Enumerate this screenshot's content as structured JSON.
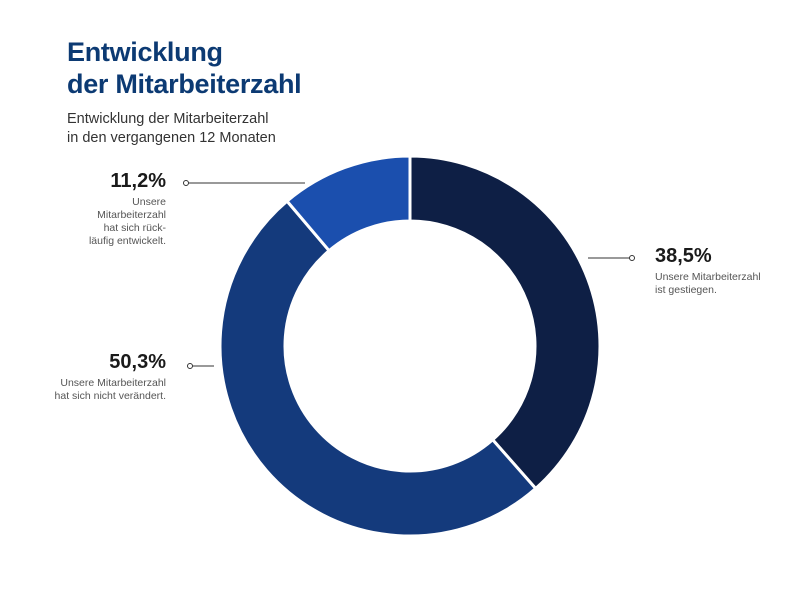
{
  "header": {
    "title_line1": "Entwicklung",
    "title_line2": "der Mitarbeiterzahl",
    "subtitle_line1": "Entwicklung der Mitarbeiterzahl",
    "subtitle_line2": "in den vergangenen 12 Monaten"
  },
  "chart_data": {
    "type": "pie",
    "variant": "donut",
    "title": "Entwicklung der Mitarbeiterzahl",
    "subtitle": "Entwicklung der Mitarbeiterzahl in den vergangenen 12 Monaten",
    "slices": [
      {
        "value": 38.5,
        "label": "38,5%",
        "desc_line1": "Unsere Mitarbeiterzahl",
        "desc_line2": "ist gestiegen.",
        "color": "#0e1f45"
      },
      {
        "value": 50.3,
        "label": "50,3%",
        "desc_line1": "Unsere Mitarbeiterzahl",
        "desc_line2": "hat sich nicht verändert.",
        "color": "#143a7c"
      },
      {
        "value": 11.2,
        "label": "11,2%",
        "desc_line1": "Unsere",
        "desc_line2": "Mitarbeiterzahl",
        "desc_line3": "hat sich rück-",
        "desc_line4": "läufig entwickelt.",
        "color": "#1b4fae"
      }
    ],
    "legend": "none"
  }
}
